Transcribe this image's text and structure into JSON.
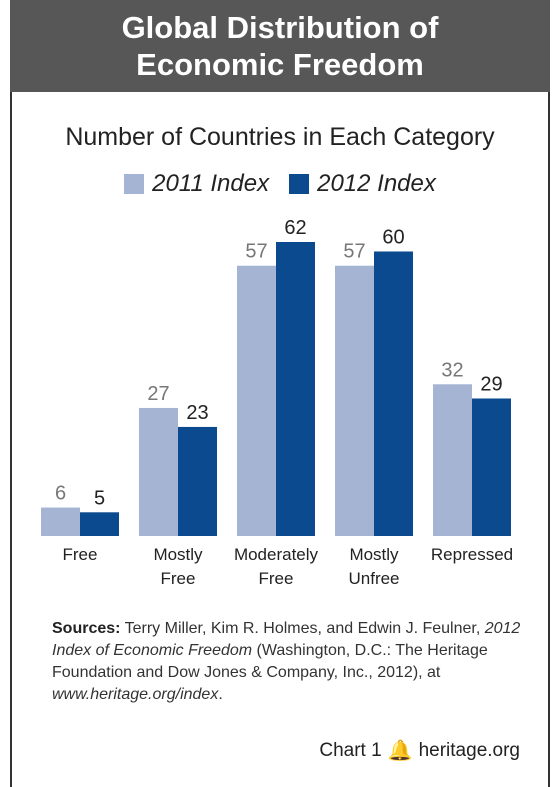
{
  "header": {
    "line1": "Global Distribution of",
    "line2": "Economic Freedom"
  },
  "chart_data": {
    "type": "bar",
    "title": "Number of Countries in Each Category",
    "categories": [
      [
        "Free"
      ],
      [
        "Mostly",
        "Free"
      ],
      [
        "Moderately",
        "Free"
      ],
      [
        "Mostly",
        "Unfree"
      ],
      [
        "Repressed"
      ]
    ],
    "series": [
      {
        "name": "2011 Index",
        "color": "#a6b4d4",
        "label_color": "#777777",
        "values": [
          6,
          27,
          57,
          57,
          32
        ]
      },
      {
        "name": "2012 Index",
        "color": "#0b4a8f",
        "label_color": "#222222",
        "values": [
          5,
          23,
          62,
          60,
          29
        ]
      }
    ],
    "ylim": [
      0,
      62
    ],
    "grid": false,
    "legend_position": "top"
  },
  "sources": {
    "label": "Sources:",
    "text1": " Terry Miller, Kim R. Holmes, and Edwin J. Feulner, ",
    "title": "2012 Index of Economic Freedom",
    "text2": " (Washington, D.C.: The Heritage Foundation and Dow Jones & Company, Inc., 2012), at ",
    "url": "www.heritage.org/index",
    "text3": "."
  },
  "footer": {
    "chart_label": "Chart 1",
    "icon": "liberty-bell-icon",
    "site": "heritage.org"
  }
}
